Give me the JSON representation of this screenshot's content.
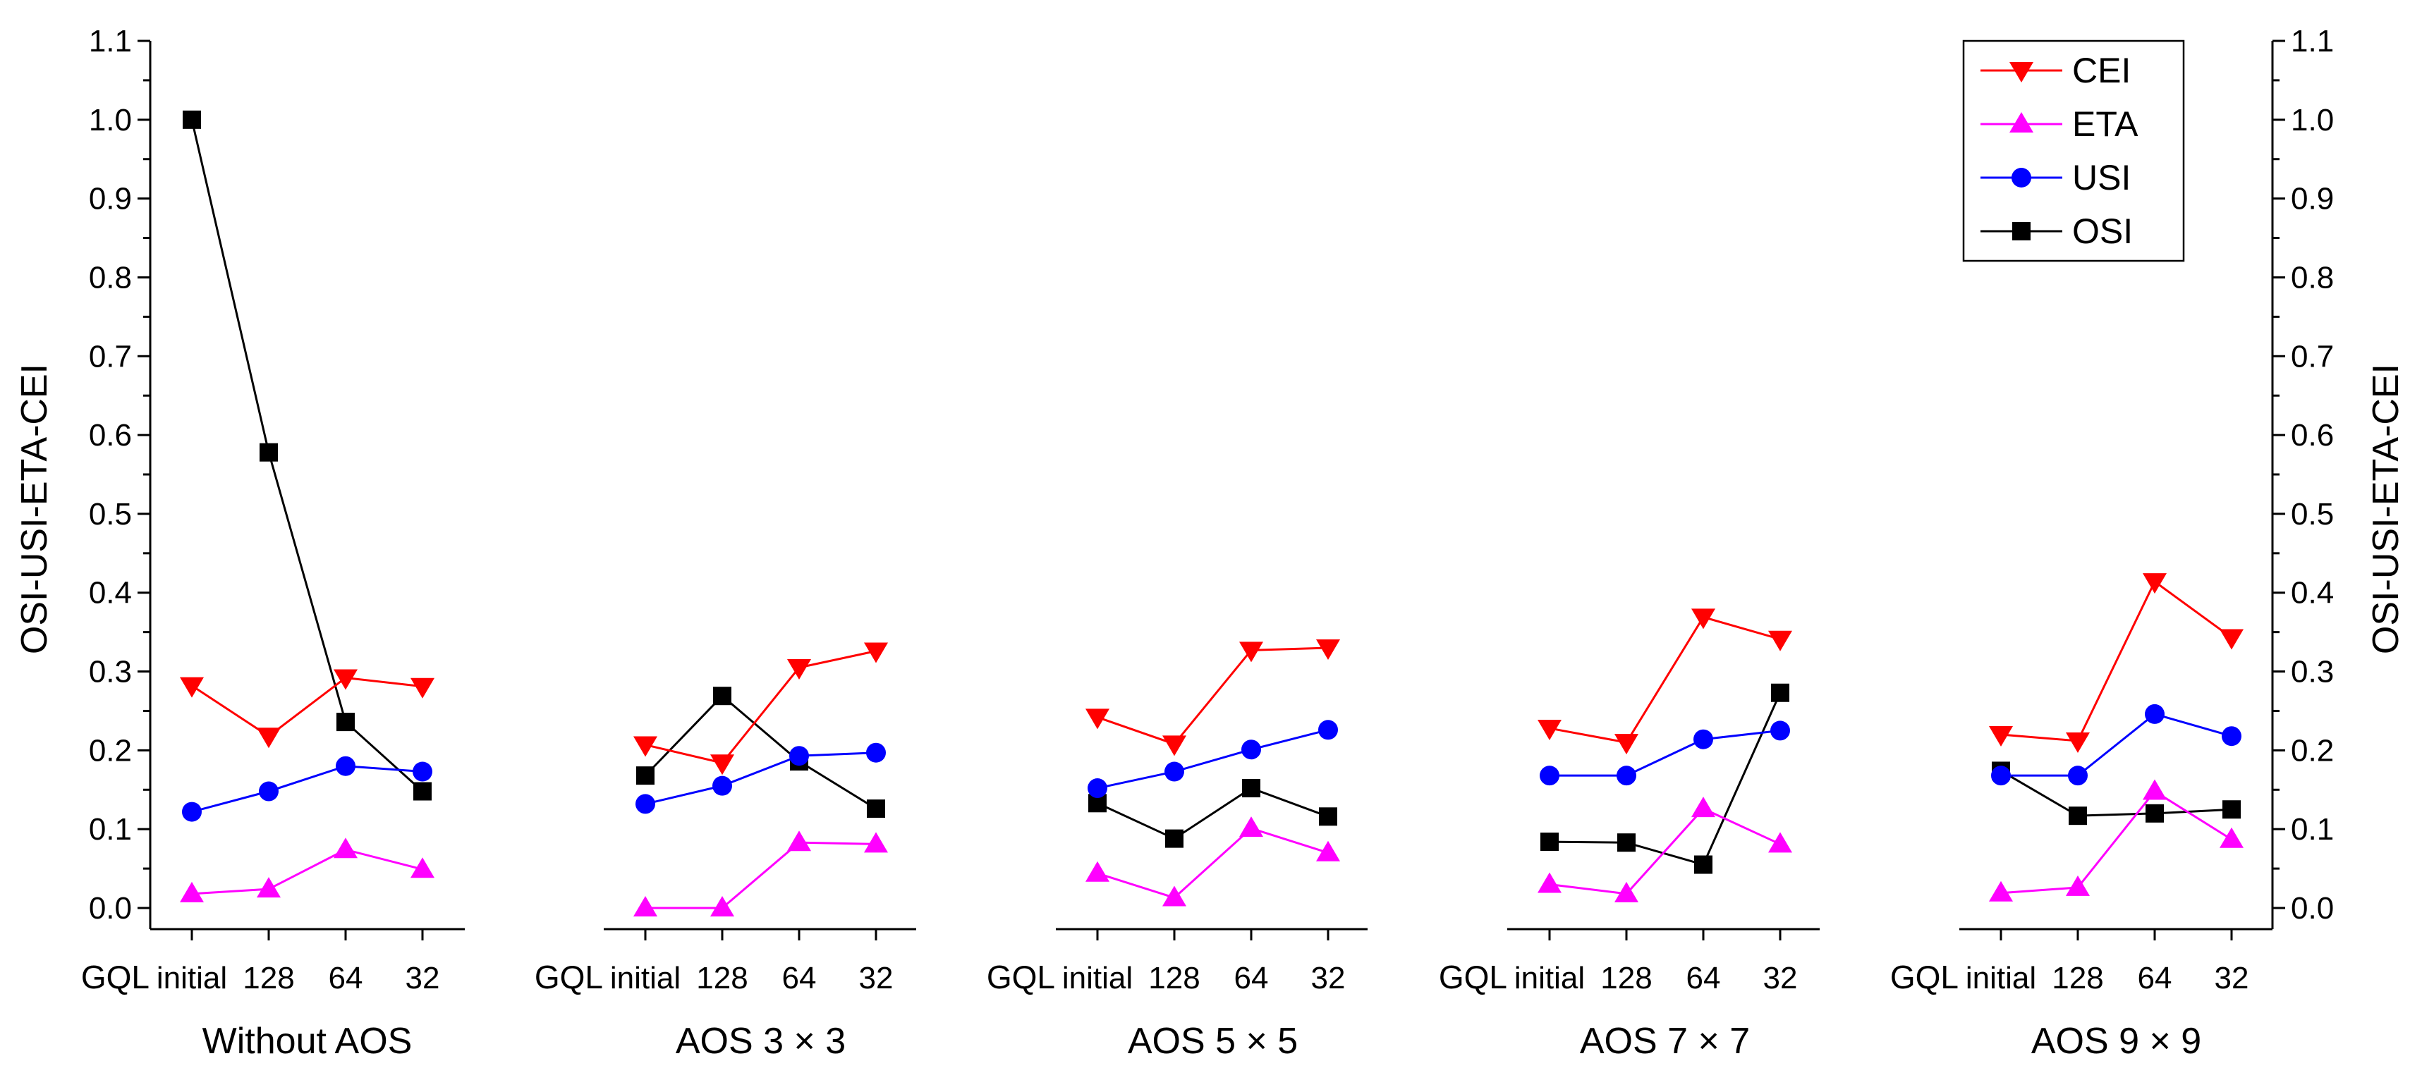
{
  "chart_data": {
    "type": "line",
    "ylabel_left": "OSI-USI-ETA-CEI",
    "ylabel_right": "OSI-USI-ETA-CEI",
    "ylim": [
      0.0,
      1.1
    ],
    "yticks": [
      "0.0",
      "0.1",
      "0.2",
      "0.3",
      "0.4",
      "0.5",
      "0.6",
      "0.7",
      "0.8",
      "0.9",
      "1.0",
      "1.1"
    ],
    "x_prefix": "GQL",
    "categories": [
      "initial",
      "128",
      "64",
      "32"
    ],
    "groups": [
      {
        "title": "Without AOS",
        "series": {
          "CEI": [
            0.282,
            0.218,
            0.292,
            0.281
          ],
          "ETA": [
            0.018,
            0.024,
            0.074,
            0.049
          ],
          "USI": [
            0.122,
            0.148,
            0.18,
            0.173
          ],
          "OSI": [
            1.0,
            0.578,
            0.236,
            0.148
          ]
        }
      },
      {
        "title": "AOS 3 × 3",
        "series": {
          "CEI": [
            0.207,
            0.184,
            0.305,
            0.326
          ],
          "ETA": [
            0.0,
            0.0,
            0.083,
            0.081
          ],
          "USI": [
            0.132,
            0.155,
            0.193,
            0.197
          ],
          "OSI": [
            0.168,
            0.269,
            0.186,
            0.126
          ]
        }
      },
      {
        "title": "AOS 5 × 5",
        "series": {
          "CEI": [
            0.242,
            0.208,
            0.327,
            0.33
          ],
          "ETA": [
            0.044,
            0.013,
            0.101,
            0.07
          ],
          "USI": [
            0.152,
            0.173,
            0.201,
            0.226
          ],
          "OSI": [
            0.133,
            0.088,
            0.152,
            0.116
          ]
        }
      },
      {
        "title": "AOS 7 × 7",
        "series": {
          "CEI": [
            0.228,
            0.21,
            0.369,
            0.341
          ],
          "ETA": [
            0.03,
            0.018,
            0.126,
            0.081
          ],
          "USI": [
            0.168,
            0.168,
            0.214,
            0.225
          ],
          "OSI": [
            0.084,
            0.083,
            0.055,
            0.273
          ]
        }
      },
      {
        "title": "AOS 9 × 9",
        "series": {
          "CEI": [
            0.22,
            0.212,
            0.414,
            0.343
          ],
          "ETA": [
            0.019,
            0.026,
            0.148,
            0.087
          ],
          "USI": [
            0.168,
            0.168,
            0.246,
            0.218
          ],
          "OSI": [
            0.174,
            0.117,
            0.12,
            0.125
          ]
        }
      }
    ],
    "legend": [
      {
        "name": "CEI",
        "color": "#ff0000",
        "marker": "triangle-down"
      },
      {
        "name": "ETA",
        "color": "#ff00ff",
        "marker": "triangle-up"
      },
      {
        "name": "USI",
        "color": "#0000ff",
        "marker": "circle"
      },
      {
        "name": "OSI",
        "color": "#000000",
        "marker": "square"
      }
    ],
    "legend_position": "top-right"
  }
}
